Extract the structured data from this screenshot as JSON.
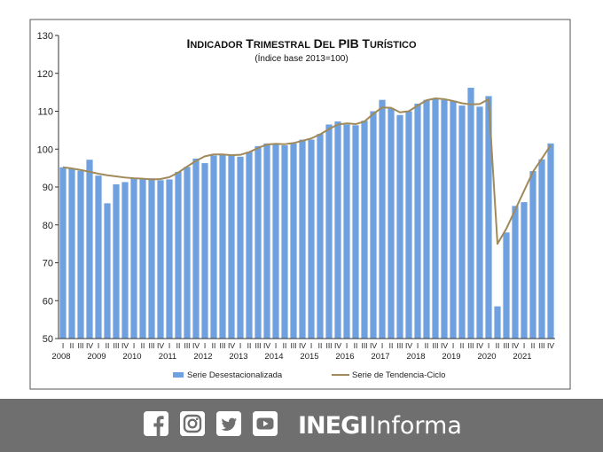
{
  "chart_data": {
    "type": "bar+line",
    "title": "Indicador Trimestral del PIB Turístico",
    "subtitle": "(Índice base 2013=100)",
    "ylim": [
      50,
      130
    ],
    "yticks": [
      50,
      60,
      70,
      80,
      90,
      100,
      110,
      120,
      130
    ],
    "quarter_labels": [
      "I",
      "II",
      "III",
      "IV"
    ],
    "years": [
      "2008",
      "2009",
      "2010",
      "2011",
      "2012",
      "2013",
      "2014",
      "2015",
      "2016",
      "2017",
      "2018",
      "2019",
      "2020",
      "2021"
    ],
    "series": [
      {
        "name": "Serie Desestacionalizada",
        "type": "bar",
        "color": "#6fa1e0",
        "values": [
          95.2,
          95.0,
          94.3,
          97.2,
          93.0,
          85.7,
          90.7,
          91.3,
          92.3,
          92.0,
          92.3,
          91.8,
          92.0,
          94.0,
          95.3,
          97.5,
          96.3,
          98.3,
          98.5,
          98.3,
          98.0,
          99.3,
          100.8,
          101.5,
          101.3,
          101.0,
          101.5,
          102.5,
          102.5,
          104.0,
          106.5,
          107.3,
          106.5,
          106.3,
          107.5,
          110.0,
          113.0,
          110.8,
          109.0,
          110.0,
          112.0,
          113.0,
          113.2,
          113.0,
          112.8,
          111.5,
          116.2,
          111.2,
          114.0,
          58.5,
          78.0,
          85.0,
          86.0,
          94.2,
          97.3,
          101.5
        ]
      },
      {
        "name": "Serie de Tendencia-Ciclo",
        "type": "line",
        "color": "#a08a5a",
        "values": [
          95.2,
          94.9,
          94.5,
          94.0,
          93.5,
          93.1,
          92.8,
          92.5,
          92.3,
          92.2,
          92.0,
          92.1,
          92.6,
          93.8,
          95.4,
          96.9,
          98.1,
          98.6,
          98.6,
          98.4,
          98.5,
          99.2,
          100.3,
          101.2,
          101.4,
          101.3,
          101.6,
          102.2,
          102.8,
          103.9,
          105.3,
          106.5,
          106.8,
          106.6,
          107.3,
          109.3,
          111.0,
          110.9,
          109.7,
          110.0,
          111.5,
          112.9,
          113.4,
          113.2,
          112.7,
          112.1,
          111.8,
          111.9,
          113.2,
          75.0,
          79.0,
          84.0,
          89.0,
          94.0,
          97.5,
          101.0
        ]
      }
    ],
    "legend_position": "bottom",
    "grid": false
  },
  "footer": {
    "icons": [
      "facebook-icon",
      "instagram-icon",
      "twitter-icon",
      "youtube-icon"
    ],
    "brand_bold": "INEGI",
    "brand_light": "Informa",
    "background": "#6f6f6f"
  }
}
